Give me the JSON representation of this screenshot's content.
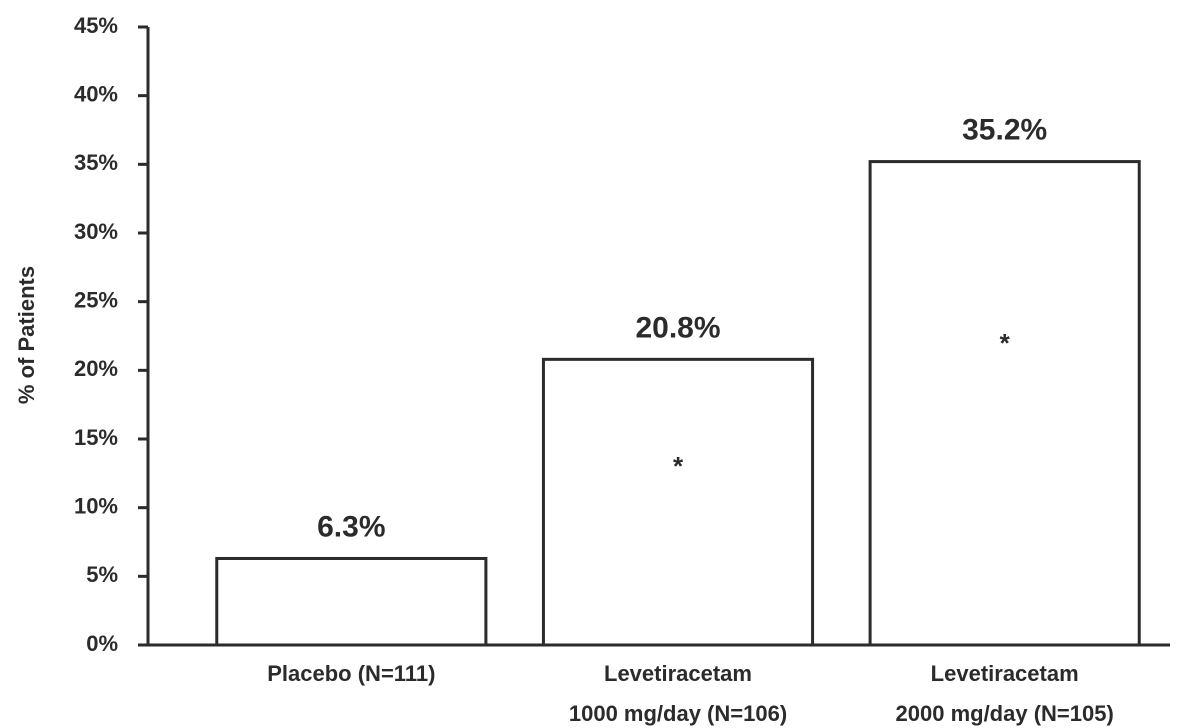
{
  "chart_data": {
    "type": "bar",
    "y_label": "% of Patients",
    "categories": [
      [
        "Placebo (N=111)"
      ],
      [
        "Levetiracetam",
        "1000 mg/day (N=106)"
      ],
      [
        "Levetiracetam",
        "2000 mg/day (N=105)"
      ]
    ],
    "values": [
      6.3,
      20.8,
      35.2
    ],
    "value_labels": [
      "6.3%",
      "20.8%",
      "35.2%"
    ],
    "markers": [
      null,
      "*",
      "*"
    ],
    "color": "#ffffff",
    "ylim": [
      0,
      45
    ],
    "yticks": [
      {
        "value": 0,
        "label": "0%"
      },
      {
        "value": 5,
        "label": "5%"
      },
      {
        "value": 10,
        "label": "10%"
      },
      {
        "value": 15,
        "label": "15%"
      },
      {
        "value": 20,
        "label": "20%"
      },
      {
        "value": 25,
        "label": "25%"
      },
      {
        "value": 30,
        "label": "30%"
      },
      {
        "value": 35,
        "label": "35%"
      },
      {
        "value": 40,
        "label": "40%"
      },
      {
        "value": 45,
        "label": "45%"
      }
    ],
    "grid": false
  }
}
